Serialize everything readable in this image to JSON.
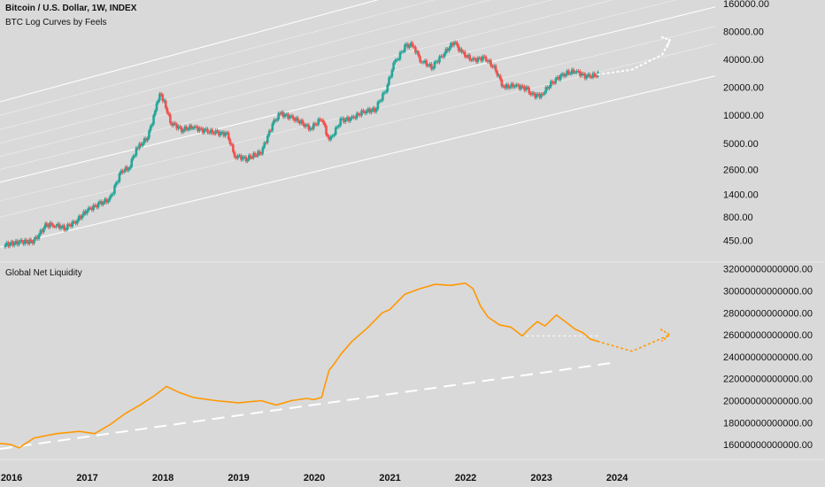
{
  "header": {
    "title": "Bitcoin / U.S. Dollar, 1W, INDEX",
    "subtitle": "BTC Log Curves by Feels"
  },
  "liquidity_header": {
    "title": "Global Net Liquidity"
  },
  "colors": {
    "background": "#d9d9d9",
    "up_candle": "#26a69a",
    "down_candle": "#ef5350",
    "channel": "#ffffff",
    "liquidity": "#ff9800",
    "trend": "#ffffff"
  },
  "chart_data": [
    {
      "type": "candlestick",
      "title": "Bitcoin / U.S. Dollar, 1W, INDEX",
      "subtitle": "BTC Log Curves by Feels",
      "y_scale": "log",
      "ylim": [
        280,
        160000
      ],
      "xlim": [
        2015.85,
        2025.3
      ],
      "yticks": [
        "160000.00",
        "80000.00",
        "40000.00",
        "20000.00",
        "10000.00",
        "5000.00",
        "2600.00",
        "1400.00",
        "800.00",
        "450.00"
      ],
      "ytick_values": [
        160000,
        80000,
        40000,
        20000,
        10000,
        5000,
        2600,
        1400,
        800,
        450
      ],
      "xticks": [
        "2016",
        "2017",
        "2018",
        "2019",
        "2020",
        "2021",
        "2022",
        "2023",
        "2024"
      ],
      "xtick_values": [
        2016,
        2017,
        2018,
        2019,
        2020,
        2021,
        2022,
        2023,
        2024
      ],
      "series": [
        {
          "x": [
            2015.9,
            2016.1,
            2016.3,
            2016.45,
            2016.55,
            2016.7,
            2016.85,
            2017.0,
            2017.15,
            2017.3,
            2017.45,
            2017.55,
            2017.65,
            2017.8,
            2017.9,
            2017.96,
            2018.02,
            2018.1,
            2018.25,
            2018.4,
            2018.55,
            2018.7,
            2018.85,
            2018.95,
            2019.1,
            2019.3,
            2019.45,
            2019.55,
            2019.7,
            2019.85,
            2019.95,
            2020.1,
            2020.2,
            2020.35,
            2020.5,
            2020.65,
            2020.8,
            2020.95,
            2021.05,
            2021.2,
            2021.3,
            2021.4,
            2021.55,
            2021.7,
            2021.85,
            2021.95,
            2022.1,
            2022.25,
            2022.4,
            2022.5,
            2022.65,
            2022.8,
            2022.88,
            2023.0,
            2023.15,
            2023.3,
            2023.45,
            2023.6,
            2023.75
          ],
          "close": [
            400,
            430,
            440,
            650,
            670,
            610,
            720,
            950,
            1100,
            1250,
            2500,
            2700,
            4300,
            5800,
            11000,
            17500,
            14000,
            8500,
            7000,
            7500,
            6800,
            6500,
            6300,
            3700,
            3400,
            4000,
            8000,
            10500,
            9500,
            8200,
            7200,
            9300,
            5200,
            8800,
            9300,
            11000,
            11500,
            19000,
            35000,
            55000,
            58000,
            40000,
            33000,
            45000,
            62000,
            47000,
            39000,
            42000,
            31000,
            20000,
            21000,
            19500,
            16500,
            16500,
            23000,
            28000,
            30000,
            26000,
            27500
          ]
        }
      ],
      "projection": {
        "x": [
          2023.75,
          2024.2,
          2024.6,
          2024.7
        ],
        "y": [
          27500,
          31000,
          45000,
          65000
        ]
      }
    },
    {
      "type": "line",
      "title": "Global Net Liquidity",
      "ylim": [
        15200000000000,
        32300000000000
      ],
      "yticks": [
        "32000000000000.00",
        "30000000000000.00",
        "28000000000000.00",
        "26000000000000.00",
        "24000000000000.00",
        "22000000000000.00",
        "20000000000000.00",
        "18000000000000.00",
        "16000000000000.00"
      ],
      "ytick_values": [
        32000000000000,
        30000000000000,
        28000000000000,
        26000000000000,
        24000000000000,
        22000000000000,
        20000000000000,
        18000000000000,
        16000000000000
      ],
      "series": [
        {
          "x": [
            2015.85,
            2016.0,
            2016.1,
            2016.3,
            2016.6,
            2016.9,
            2017.1,
            2017.3,
            2017.5,
            2017.7,
            2017.9,
            2018.05,
            2018.2,
            2018.4,
            2018.7,
            2019.0,
            2019.3,
            2019.5,
            2019.7,
            2019.9,
            2020.0,
            2020.1,
            2020.15,
            2020.2,
            2020.25,
            2020.35,
            2020.5,
            2020.7,
            2020.9,
            2021.0,
            2021.2,
            2021.4,
            2021.6,
            2021.8,
            2022.0,
            2022.1,
            2022.2,
            2022.3,
            2022.45,
            2022.6,
            2022.75,
            2022.85,
            2022.95,
            2023.05,
            2023.2,
            2023.3,
            2023.45,
            2023.55,
            2023.65,
            2023.75
          ],
          "y": [
            16100000000000,
            16000000000000,
            15700000000000,
            16600000000000,
            17000000000000,
            17200000000000,
            17000000000000,
            17800000000000,
            18800000000000,
            19600000000000,
            20500000000000,
            21300000000000,
            20800000000000,
            20300000000000,
            20000000000000,
            19800000000000,
            20000000000000,
            19600000000000,
            20000000000000,
            20200000000000,
            20100000000000,
            20300000000000,
            21600000000000,
            22800000000000,
            23200000000000,
            24200000000000,
            25400000000000,
            26600000000000,
            28000000000000,
            28300000000000,
            29700000000000,
            30200000000000,
            30600000000000,
            30500000000000,
            30700000000000,
            30200000000000,
            28600000000000,
            27600000000000,
            26900000000000,
            26700000000000,
            25900000000000,
            26600000000000,
            27200000000000,
            26800000000000,
            27800000000000,
            27300000000000,
            26500000000000,
            26200000000000,
            25600000000000,
            25400000000000
          ]
        }
      ],
      "projection": {
        "x": [
          2023.75,
          2024.2,
          2024.7
        ],
        "y": [
          25400000000000,
          24500000000000,
          26000000000000
        ]
      }
    }
  ],
  "xaxis_labels": [
    "2016",
    "2017",
    "2018",
    "2019",
    "2020",
    "2021",
    "2022",
    "2023",
    "2024"
  ]
}
